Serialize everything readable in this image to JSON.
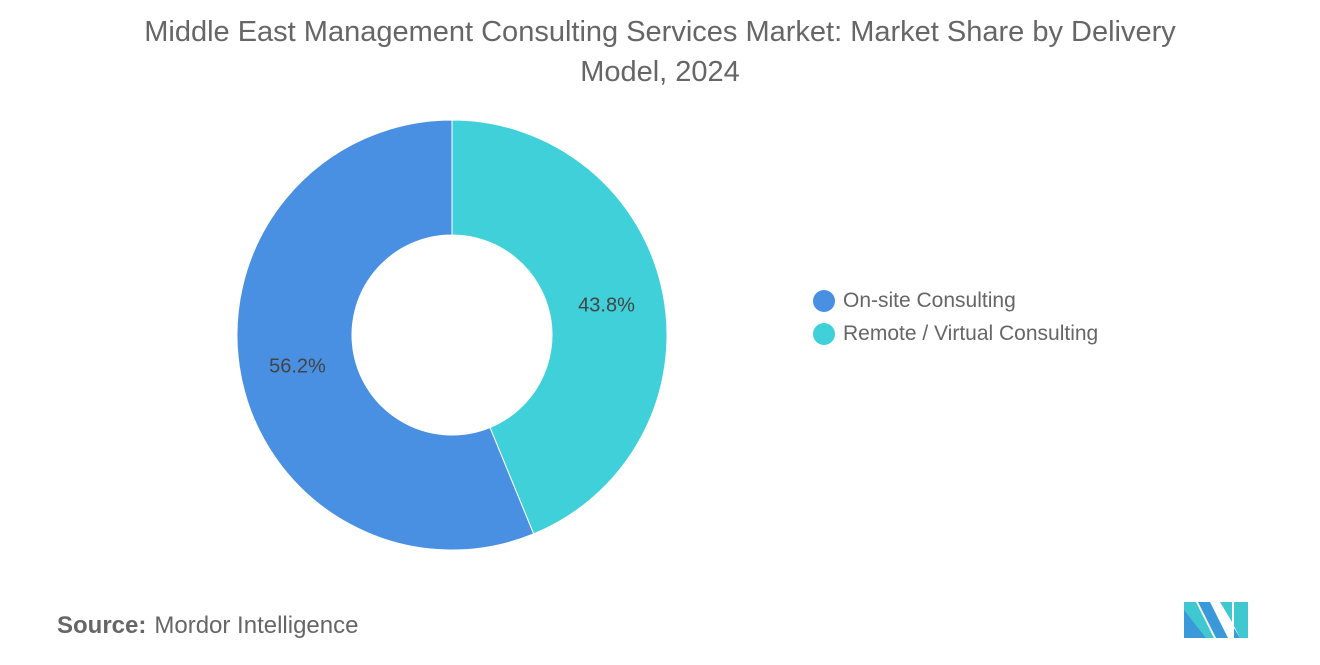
{
  "chart_data": {
    "type": "pie",
    "title": "Middle East Management Consulting Services Market: Market Share by Delivery Model, 2024",
    "donut": true,
    "categories": [
      "On-site Consulting",
      "Remote / Virtual Consulting"
    ],
    "values": [
      56.2,
      43.8
    ],
    "data_labels": [
      "56.2%",
      "43.8%"
    ],
    "colors": [
      "#4A90E2",
      "#40D0DA"
    ],
    "legend": "right"
  },
  "source": {
    "label": "Source:",
    "value": "Mordor Intelligence"
  },
  "logo": {
    "text": "Mordor Intelligence"
  }
}
